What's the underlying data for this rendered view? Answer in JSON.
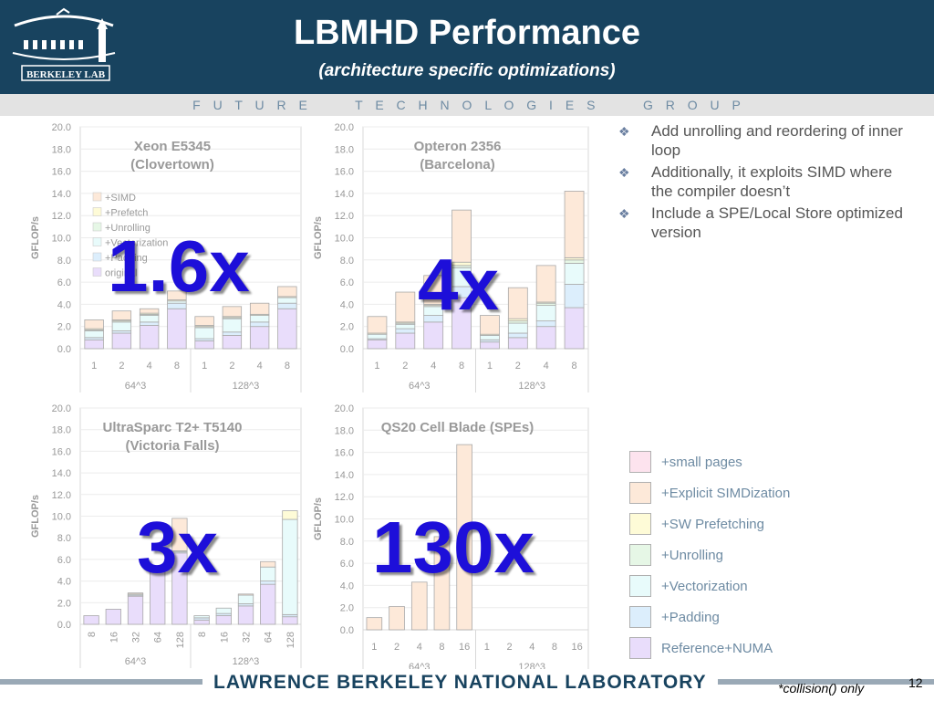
{
  "header": {
    "title": "LBMHD Performance",
    "subtitle": "(architecture specific optimizations)",
    "logo_text": "BERKELEY LAB",
    "group_bar": "F U T U R E    T E C H N O L O G I E S    G R O U P"
  },
  "bullets": [
    "Add unrolling and reordering of inner loop",
    "Additionally, it exploits SIMD where the compiler doesn’t",
    "Include a SPE/Local Store optimized version"
  ],
  "legend": [
    {
      "label": "+small pages",
      "color": "#fde3ee"
    },
    {
      "label": "+Explicit SIMDization",
      "color": "#fde9d9"
    },
    {
      "label": "+SW Prefetching",
      "color": "#fefbd7"
    },
    {
      "label": "+Unrolling",
      "color": "#e6f7e6"
    },
    {
      "label": "+Vectorization",
      "color": "#e8fbfb"
    },
    {
      "label": "+Padding",
      "color": "#dceefc"
    },
    {
      "label": "Reference+NUMA",
      "color": "#e9ddfb"
    }
  ],
  "series_colors": {
    "original": "#e9ddfb",
    "padding": "#dceefc",
    "vectorization": "#e8fbfb",
    "unrolling": "#e6f7e6",
    "prefetch": "#fefbd7",
    "simd": "#fde9d9"
  },
  "chart_data": [
    {
      "type": "bar",
      "stacked": true,
      "title_line1": "Xeon E5345",
      "title_line2": "(Clovertown)",
      "ylabel": "GFLOP/s",
      "ylim": [
        0,
        20
      ],
      "yticks": [
        "0.0",
        "2.0",
        "4.0",
        "6.0",
        "8.0",
        "10.0",
        "12.0",
        "14.0",
        "16.0",
        "18.0",
        "20.0"
      ],
      "categories": [
        "1",
        "2",
        "4",
        "8",
        "1",
        "2",
        "4",
        "8"
      ],
      "groups": [
        "64^3",
        "128^3"
      ],
      "speedup": "1.6x",
      "inner_legend": [
        "+SIMD",
        "+Prefetch",
        "+Unrolling",
        "+Vectorization",
        "+Padding",
        "original"
      ],
      "series": [
        {
          "key": "original",
          "values": [
            0.8,
            1.4,
            2.1,
            3.6,
            0.7,
            1.2,
            2.0,
            3.6
          ]
        },
        {
          "key": "padding",
          "values": [
            0.2,
            0.2,
            0.3,
            0.5,
            0.2,
            0.3,
            0.4,
            0.5
          ]
        },
        {
          "key": "vectorization",
          "values": [
            0.6,
            0.8,
            0.6,
            0.2,
            1.0,
            1.2,
            0.6,
            0.5
          ]
        },
        {
          "key": "unrolling",
          "values": [
            0.1,
            0.1,
            0.1,
            0.0,
            0.1,
            0.1,
            0.0,
            0.0
          ]
        },
        {
          "key": "prefetch",
          "values": [
            0.1,
            0.1,
            0.1,
            0.1,
            0.1,
            0.1,
            0.1,
            0.1
          ]
        },
        {
          "key": "simd",
          "values": [
            0.8,
            0.8,
            0.4,
            0.8,
            0.8,
            0.9,
            1.0,
            0.9
          ]
        }
      ]
    },
    {
      "type": "bar",
      "stacked": true,
      "title_line1": "Opteron 2356",
      "title_line2": "(Barcelona)",
      "ylabel": "GFLOP/s",
      "ylim": [
        0,
        20
      ],
      "yticks": [
        "0.0",
        "2.0",
        "4.0",
        "6.0",
        "8.0",
        "10.0",
        "12.0",
        "14.0",
        "16.0",
        "18.0",
        "20.0"
      ],
      "categories": [
        "1",
        "2",
        "4",
        "8",
        "1",
        "2",
        "4",
        "8"
      ],
      "groups": [
        "64^3",
        "128^3"
      ],
      "speedup": "4x",
      "series": [
        {
          "key": "original",
          "values": [
            0.8,
            1.4,
            2.4,
            4.6,
            0.6,
            1.0,
            2.0,
            3.7
          ]
        },
        {
          "key": "padding",
          "values": [
            0.1,
            0.4,
            0.6,
            1.0,
            0.2,
            0.4,
            0.5,
            2.1
          ]
        },
        {
          "key": "vectorization",
          "values": [
            0.4,
            0.4,
            0.8,
            1.7,
            0.4,
            0.9,
            1.4,
            1.9
          ]
        },
        {
          "key": "unrolling",
          "values": [
            0.0,
            0.1,
            0.1,
            0.2,
            0.0,
            0.2,
            0.2,
            0.3
          ]
        },
        {
          "key": "prefetch",
          "values": [
            0.1,
            0.1,
            0.1,
            0.3,
            0.1,
            0.2,
            0.1,
            0.2
          ]
        },
        {
          "key": "simd",
          "values": [
            1.5,
            2.7,
            2.6,
            4.7,
            1.7,
            2.8,
            3.3,
            6.0
          ]
        }
      ]
    },
    {
      "type": "bar",
      "stacked": true,
      "title_line1": "UltraSparc T2+ T5140",
      "title_line2": "(Victoria Falls)",
      "ylabel": "GFLOP/s",
      "ylim": [
        0,
        20
      ],
      "yticks": [
        "0.0",
        "2.0",
        "4.0",
        "6.0",
        "8.0",
        "10.0",
        "12.0",
        "14.0",
        "16.0",
        "18.0",
        "20.0"
      ],
      "categories": [
        "8",
        "16",
        "32",
        "64",
        "128",
        "8",
        "16",
        "32",
        "64",
        "128"
      ],
      "groups": [
        "64^3",
        "128^3"
      ],
      "speedup": "3x",
      "series": [
        {
          "key": "original",
          "values": [
            0.8,
            1.4,
            2.6,
            5.1,
            6.6,
            0.4,
            0.8,
            1.7,
            3.7,
            0.7
          ]
        },
        {
          "key": "padding",
          "values": [
            0.0,
            0.0,
            0.1,
            0.1,
            0.1,
            0.2,
            0.2,
            0.2,
            0.3,
            0.2
          ]
        },
        {
          "key": "vectorization",
          "values": [
            0.0,
            0.0,
            0.1,
            0.1,
            0.1,
            0.2,
            0.5,
            0.8,
            1.3,
            8.8
          ]
        },
        {
          "key": "unrolling",
          "values": [
            0.0,
            0.0,
            0.0,
            0.0,
            0.0,
            0.0,
            0.0,
            0.0,
            0.0,
            0.0
          ]
        },
        {
          "key": "prefetch",
          "values": [
            0.0,
            0.0,
            0.0,
            0.0,
            0.0,
            0.0,
            0.0,
            0.0,
            0.0,
            0.8
          ]
        },
        {
          "key": "simd",
          "values": [
            0.0,
            0.0,
            0.1,
            0.0,
            3.0,
            0.0,
            0.0,
            0.1,
            0.5,
            0.0
          ]
        }
      ]
    },
    {
      "type": "bar",
      "stacked": true,
      "title_line1": "QS20 Cell Blade (SPEs)",
      "title_line2": "",
      "ylabel": "GFLOP/s",
      "ylim": [
        0,
        20
      ],
      "yticks": [
        "0.0",
        "2.0",
        "4.0",
        "6.0",
        "8.0",
        "10.0",
        "12.0",
        "14.0",
        "16.0",
        "18.0",
        "20.0"
      ],
      "categories": [
        "1",
        "2",
        "4",
        "8",
        "16",
        "1",
        "2",
        "4",
        "8",
        "16"
      ],
      "groups": [
        "64^3",
        "128^3"
      ],
      "speedup": "130x",
      "series": [
        {
          "key": "simd",
          "values": [
            1.1,
            2.1,
            4.3,
            8.4,
            16.7,
            0,
            0,
            0,
            0,
            0
          ]
        }
      ]
    }
  ],
  "footer": {
    "lab": "LAWRENCE BERKELEY NATIONAL LABORATORY",
    "footnote": "*collision() only",
    "slide_number": "12"
  }
}
